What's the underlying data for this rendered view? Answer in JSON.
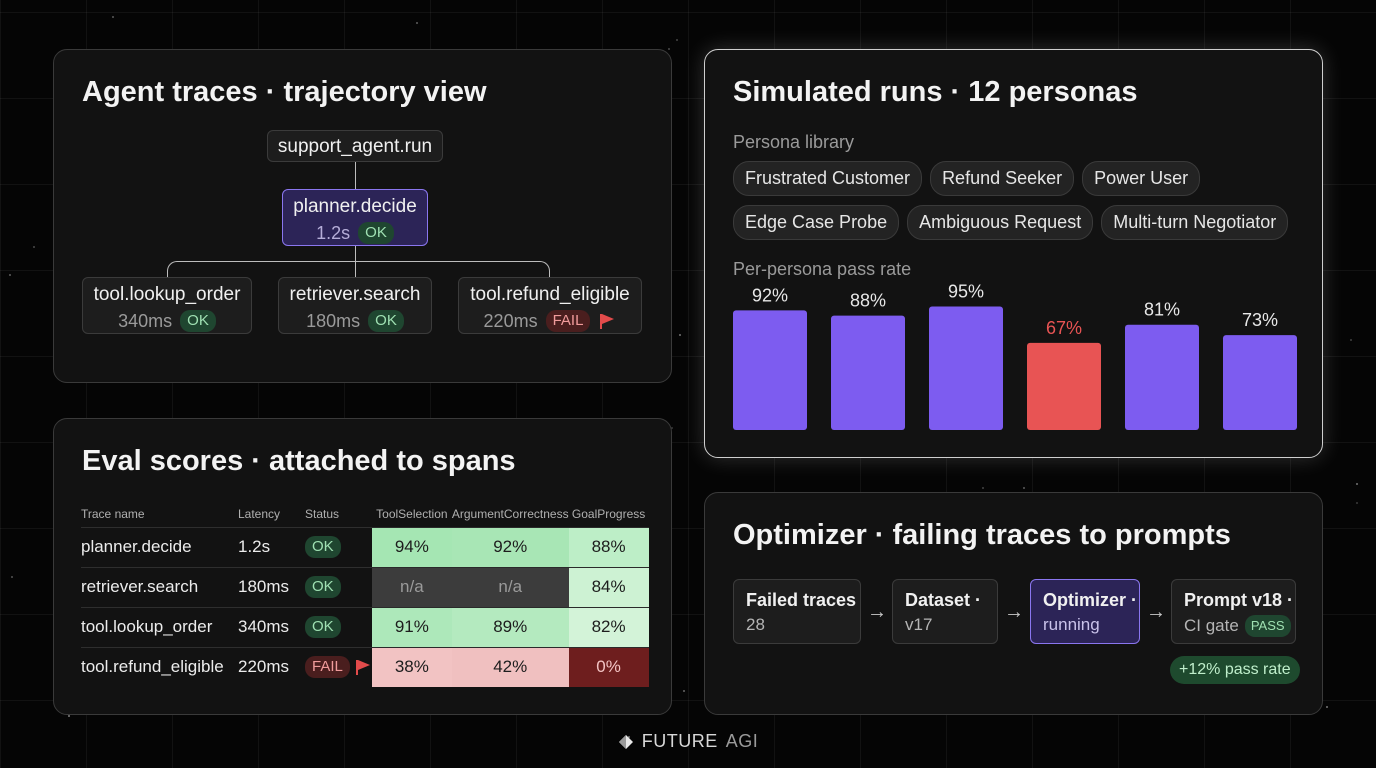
{
  "traces": {
    "title": "Agent traces · trajectory view",
    "root": {
      "name": "support_agent.run"
    },
    "planner": {
      "name": "planner.decide",
      "latency": "1.2s",
      "status": "OK"
    },
    "children": [
      {
        "name": "tool.lookup_order",
        "latency": "340ms",
        "status": "OK",
        "flag": false
      },
      {
        "name": "retriever.search",
        "latency": "180ms",
        "status": "OK",
        "flag": false
      },
      {
        "name": "tool.refund_eligible",
        "latency": "220ms",
        "status": "FAIL",
        "flag": true
      }
    ]
  },
  "eval": {
    "title": "Eval scores · attached to spans",
    "columns": [
      "Trace name",
      "Latency",
      "Status",
      "ToolSelection",
      "ArgumentCorrectness",
      "GoalProgress"
    ],
    "rows": [
      {
        "name": "planner.decide",
        "latency": "1.2s",
        "status": "OK",
        "scores": [
          "94%",
          "92%",
          "88%"
        ],
        "colors": [
          "#a5e6b3",
          "#a8e6b5",
          "#bdeec7"
        ]
      },
      {
        "name": "retriever.search",
        "latency": "180ms",
        "status": "OK",
        "scores": [
          "n/a",
          "n/a",
          "84%"
        ],
        "colors": [
          "#3c3c3c",
          "#3c3c3c",
          "#cdf2d3"
        ]
      },
      {
        "name": "tool.lookup_order",
        "latency": "340ms",
        "status": "OK",
        "scores": [
          "91%",
          "89%",
          "82%"
        ],
        "colors": [
          "#ade8ba",
          "#b4eabf",
          "#d3f3d8"
        ]
      },
      {
        "name": "tool.refund_eligible",
        "latency": "220ms",
        "status": "FAIL",
        "scores": [
          "38%",
          "42%",
          "0%"
        ],
        "colors": [
          "#f2c3c3",
          "#f0c0c0",
          "#6e1e1e"
        ]
      }
    ]
  },
  "sim": {
    "title": "Simulated runs · 12 personas",
    "persona_label": "Persona library",
    "personas_row1": [
      "Frustrated Customer",
      "Refund Seeker",
      "Power User"
    ],
    "personas_row2": [
      "Edge Case Probe",
      "Ambiguous Request",
      "Multi-turn Negotiator"
    ],
    "chart_label": "Per-persona pass rate"
  },
  "chart_data": {
    "type": "bar",
    "values": [
      92,
      88,
      95,
      67,
      81,
      73
    ],
    "labels": [
      "92%",
      "88%",
      "95%",
      "67%",
      "81%",
      "73%"
    ],
    "highlight_index": 3,
    "colors": {
      "bar": "#7d5cf0",
      "highlight": "#e85454",
      "label": "#e8e8e8",
      "highlight_label": "#e85454"
    },
    "ylim": [
      0,
      100
    ]
  },
  "optimizer": {
    "title": "Optimizer · failing traces to prompts",
    "steps": [
      {
        "title": "Failed traces",
        "sub": "28"
      },
      {
        "title": "Dataset ·",
        "sub": "v17"
      },
      {
        "title": "Optimizer ·",
        "sub": "running"
      },
      {
        "title": "Prompt v18 ·",
        "sub": "CI gate",
        "badge": "PASS"
      }
    ],
    "result": "+12% pass rate"
  },
  "footer": {
    "brand": "FUTURE",
    "brand2": "AGI"
  }
}
